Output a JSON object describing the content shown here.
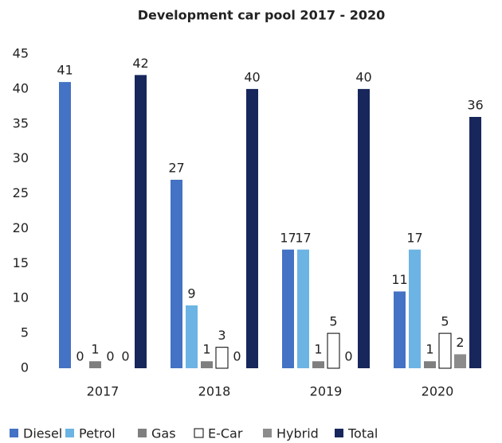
{
  "chart_data": {
    "type": "bar",
    "title": "Development car pool 2017 - 2020",
    "categories": [
      "2017",
      "2018",
      "2019",
      "2020"
    ],
    "series": [
      {
        "name": "Diesel",
        "color": "#4472c4",
        "values": [
          41,
          27,
          17,
          11
        ]
      },
      {
        "name": "Petrol",
        "color": "#6cb4e4",
        "values": [
          0,
          9,
          17,
          17
        ]
      },
      {
        "name": "Gas",
        "color": "#7f7f7f",
        "values": [
          1,
          1,
          1,
          1
        ]
      },
      {
        "name": "E-Car",
        "color": "#ffffff",
        "values": [
          0,
          3,
          5,
          5
        ]
      },
      {
        "name": "Hybrid",
        "color": "#8c8c8c",
        "values": [
          0,
          0,
          0,
          2
        ]
      },
      {
        "name": "Total",
        "color": "#17275c",
        "values": [
          42,
          40,
          40,
          36
        ]
      }
    ],
    "ylim": [
      0,
      45
    ],
    "yticks": [
      0,
      5,
      10,
      15,
      20,
      25,
      30,
      35,
      40,
      45
    ],
    "grid": false,
    "legend": "bottom"
  }
}
